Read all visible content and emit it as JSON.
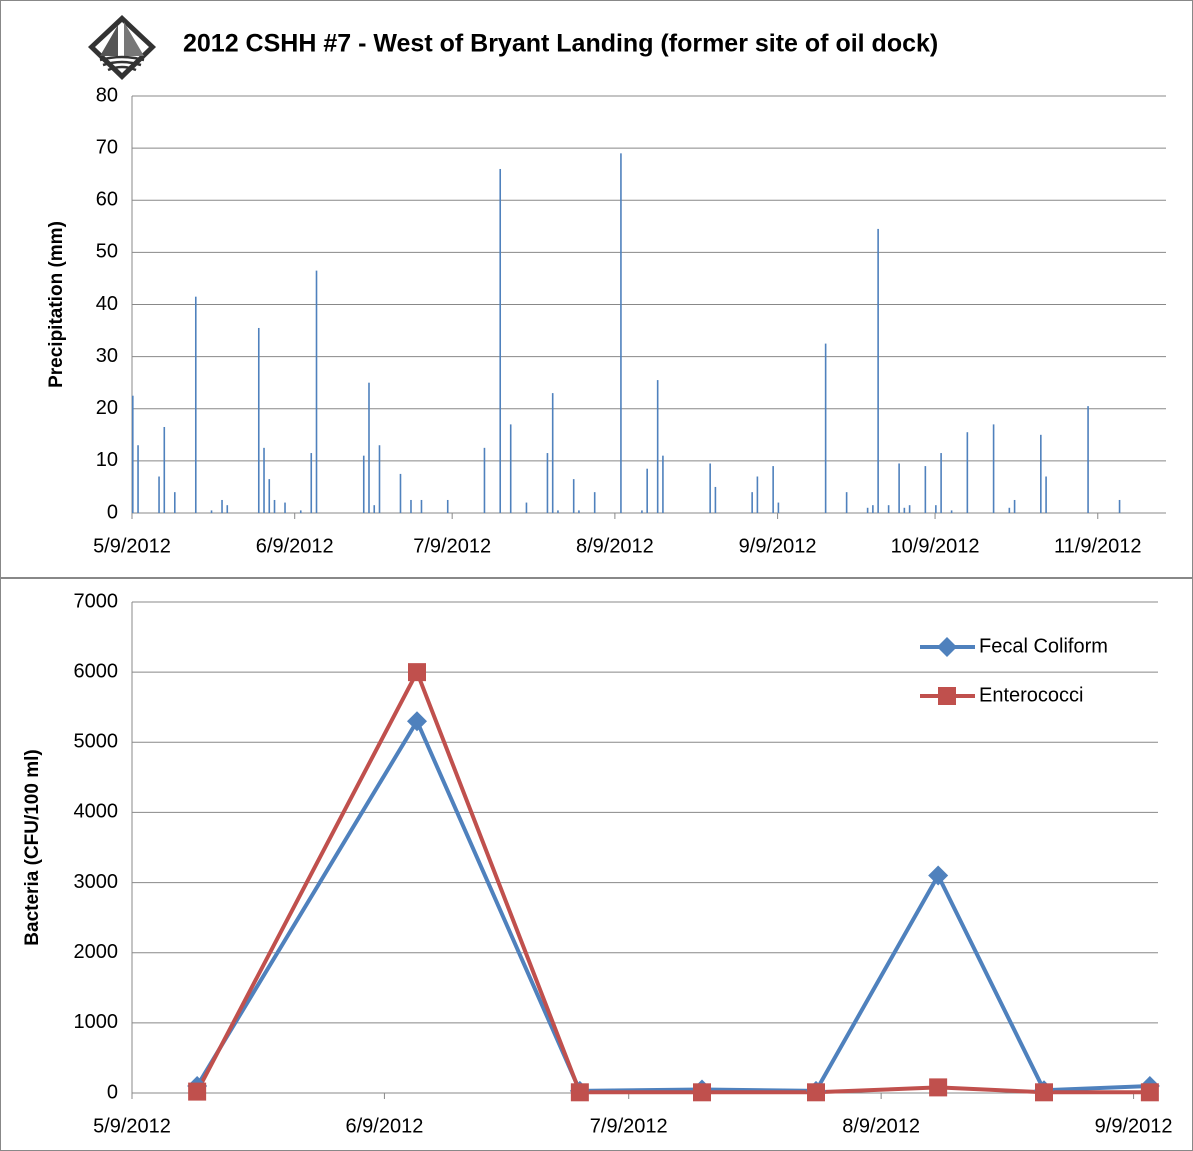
{
  "chart_data": [
    {
      "type": "bar",
      "title": "2012 CSHH #7 - West of Bryant Landing (former site of oil dock)",
      "y_label": "Precipitation (mm)",
      "color": "#4f81bd",
      "x": [
        "2012-05-09",
        "2012-05-10",
        "2012-05-14",
        "2012-05-15",
        "2012-05-17",
        "2012-05-21",
        "2012-05-24",
        "2012-05-26",
        "2012-05-27",
        "2012-06-02",
        "2012-06-03",
        "2012-06-04",
        "2012-06-05",
        "2012-06-07",
        "2012-06-10",
        "2012-06-12",
        "2012-06-13",
        "2012-06-22",
        "2012-06-23",
        "2012-06-24",
        "2012-06-25",
        "2012-06-29",
        "2012-07-01",
        "2012-07-03",
        "2012-07-08",
        "2012-07-15",
        "2012-07-18",
        "2012-07-20",
        "2012-07-23",
        "2012-07-27",
        "2012-07-28",
        "2012-07-29",
        "2012-08-01",
        "2012-08-02",
        "2012-08-05",
        "2012-08-10",
        "2012-08-14",
        "2012-08-15",
        "2012-08-17",
        "2012-08-18",
        "2012-08-27",
        "2012-08-28",
        "2012-09-04",
        "2012-09-05",
        "2012-09-08",
        "2012-09-09",
        "2012-09-18",
        "2012-09-22",
        "2012-09-26",
        "2012-09-27",
        "2012-09-28",
        "2012-09-30",
        "2012-10-02",
        "2012-10-03",
        "2012-10-04",
        "2012-10-07",
        "2012-10-09",
        "2012-10-10",
        "2012-10-12",
        "2012-10-15",
        "2012-10-20",
        "2012-10-23",
        "2012-10-24",
        "2012-10-29",
        "2012-10-30",
        "2012-11-07",
        "2012-11-13"
      ],
      "values": [
        22.5,
        13,
        7,
        16.5,
        4,
        41.5,
        0.5,
        2.5,
        1.5,
        35.5,
        12.5,
        6.5,
        2.5,
        2,
        0.5,
        11.5,
        46.5,
        11,
        25,
        1.5,
        13,
        7.5,
        2.5,
        2.5,
        2.5,
        12.5,
        66,
        17,
        2,
        11.5,
        23,
        0.5,
        6.5,
        0.5,
        4,
        69,
        0.5,
        8.5,
        25.5,
        11,
        9.5,
        5,
        4,
        7,
        9,
        2,
        32.5,
        4,
        1,
        1.5,
        54.5,
        1.5,
        9.5,
        1,
        1.5,
        9,
        1.5,
        11.5,
        0.5,
        15.5,
        17,
        1,
        2.5,
        15,
        7,
        20.5,
        2.5
      ],
      "xlim": [
        "2012-05-09",
        "2012-11-22"
      ],
      "xticks": [
        {
          "value": "2012-05-09",
          "label": "5/9/2012"
        },
        {
          "value": "2012-06-09",
          "label": "6/9/2012"
        },
        {
          "value": "2012-07-09",
          "label": "7/9/2012"
        },
        {
          "value": "2012-08-09",
          "label": "8/9/2012"
        },
        {
          "value": "2012-09-09",
          "label": "9/9/2012"
        },
        {
          "value": "2012-10-09",
          "label": "10/9/2012"
        },
        {
          "value": "2012-11-09",
          "label": "11/9/2012"
        }
      ],
      "ylim": [
        0,
        80
      ],
      "yticks": [
        0,
        10,
        20,
        30,
        40,
        50,
        60,
        70,
        80
      ],
      "grid": true
    },
    {
      "type": "line",
      "y_label": "Bacteria (CFU/100 ml)",
      "legend": "upper right",
      "x": [
        "2012-05-17",
        "2012-06-13",
        "2012-07-03",
        "2012-07-18",
        "2012-08-01",
        "2012-08-16",
        "2012-08-29",
        "2012-09-11"
      ],
      "series": [
        {
          "name": "Fecal Coliform",
          "color": "#4f81bd",
          "marker": "diamond",
          "values": [
            100,
            5300,
            30,
            50,
            30,
            3100,
            40,
            100
          ]
        },
        {
          "name": "Enterococci",
          "color": "#c0504d",
          "marker": "square",
          "values": [
            20,
            6000,
            10,
            10,
            10,
            80,
            10,
            10
          ]
        }
      ],
      "xlim": [
        "2012-05-09",
        "2012-09-12"
      ],
      "xticks": [
        {
          "value": "2012-05-09",
          "label": "5/9/2012"
        },
        {
          "value": "2012-06-09",
          "label": "6/9/2012"
        },
        {
          "value": "2012-07-09",
          "label": "7/9/2012"
        },
        {
          "value": "2012-08-09",
          "label": "8/9/2012"
        },
        {
          "value": "2012-09-09",
          "label": "9/9/2012"
        }
      ],
      "ylim": [
        0,
        7000
      ],
      "yticks": [
        0,
        1000,
        2000,
        3000,
        4000,
        5000,
        6000,
        7000
      ],
      "grid": true
    }
  ]
}
